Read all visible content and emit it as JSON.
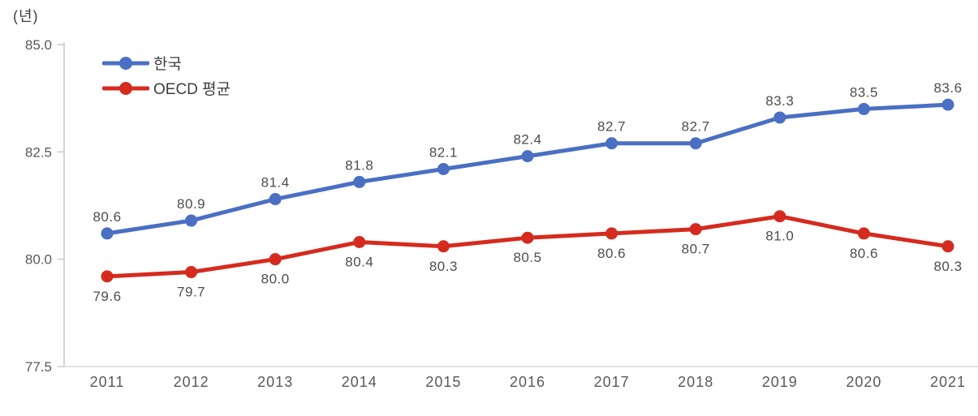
{
  "unit_label": "(년)",
  "colors": {
    "korea_line": "#4A6FC3",
    "oecd_line": "#D52B1E",
    "axis_line": "#CCCCCC",
    "baseline": "#D9D9D9",
    "tick_text": "#595959",
    "data_label_text": "#4D4D4D"
  },
  "chart_data": {
    "type": "line",
    "title": "",
    "ylabel": "(년)",
    "xlabel": "",
    "categories": [
      "2011",
      "2012",
      "2013",
      "2014",
      "2015",
      "2016",
      "2017",
      "2018",
      "2019",
      "2020",
      "2021"
    ],
    "series": [
      {
        "name": "한국",
        "color": "#4A6FC3",
        "values": [
          80.6,
          80.9,
          81.4,
          81.8,
          82.1,
          82.4,
          82.7,
          82.7,
          83.3,
          83.5,
          83.6
        ],
        "label_position": "above"
      },
      {
        "name": "OECD 평균",
        "color": "#D52B1E",
        "values": [
          79.6,
          79.7,
          80.0,
          80.4,
          80.3,
          80.5,
          80.6,
          80.7,
          81.0,
          80.6,
          80.3
        ],
        "label_position": "below"
      }
    ],
    "yticks": [
      77.5,
      80.0,
      82.5,
      85.0
    ],
    "ylim": [
      77.5,
      85.0
    ],
    "grid": "off",
    "legend_position": "top-left-inside"
  }
}
